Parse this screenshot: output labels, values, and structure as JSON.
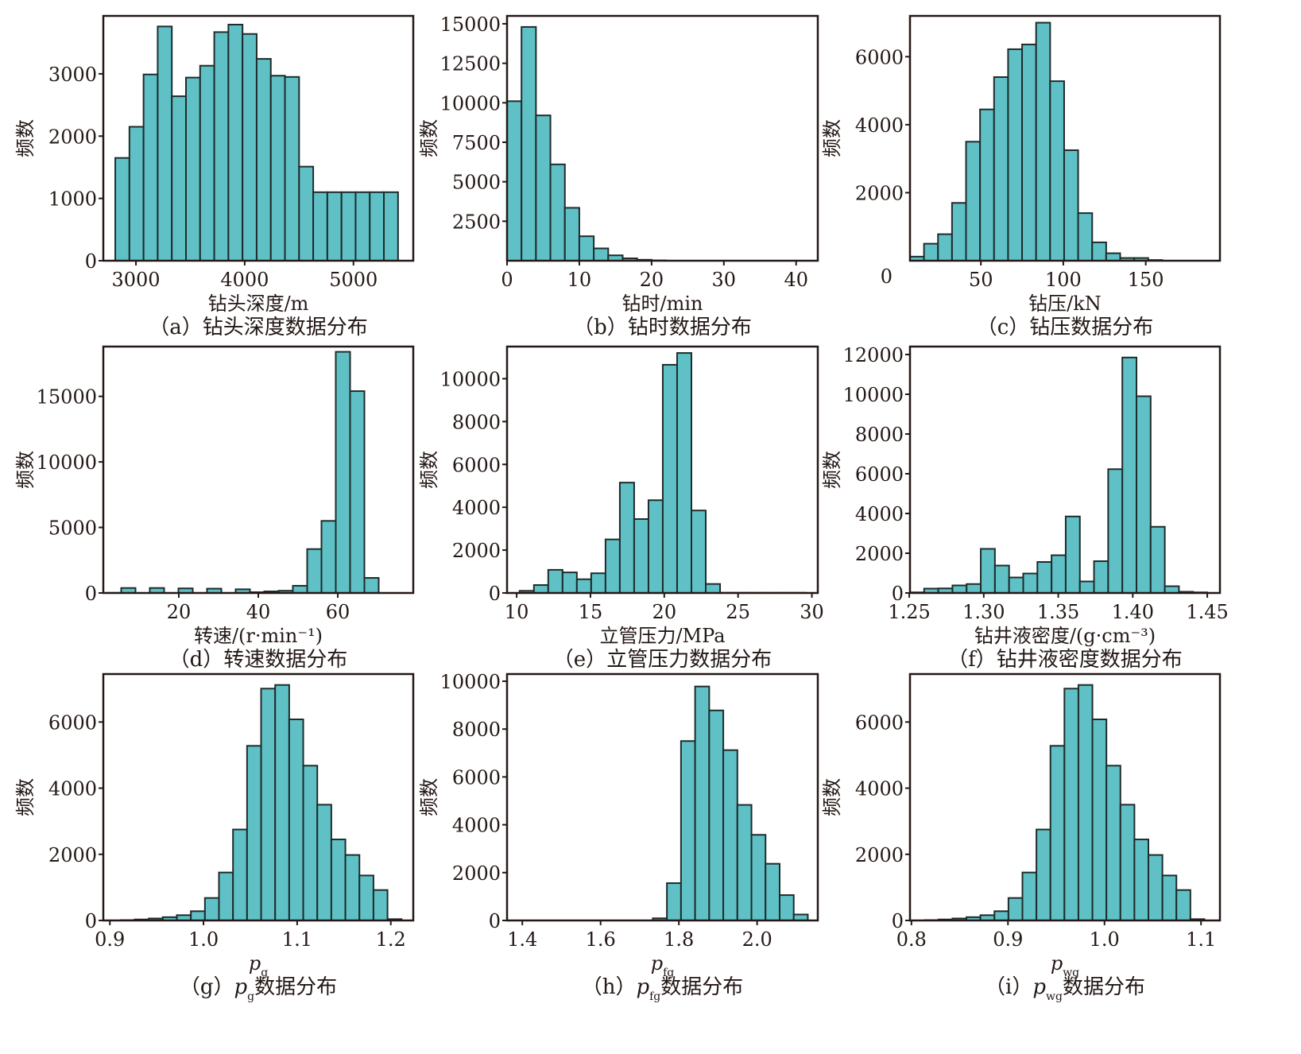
{
  "figure": {
    "bar_color": "#5fc1c6",
    "bar_edge_color": "#1f2b2b",
    "axis_color": "#231815"
  },
  "chart_data": [
    {
      "id": "a",
      "type": "bar",
      "title": "钻头深度数据分布",
      "caption_prefix": "（a）",
      "caption_text": "钻头深度数据分布",
      "xlabel": "钻头深度/m",
      "ylabel": "频数",
      "xlim": [
        2700,
        5550
      ],
      "ylim": [
        0,
        3930
      ],
      "xticks": [
        3000,
        4000,
        5000
      ],
      "xtick_labels": [
        "3000",
        "4000",
        "5000"
      ],
      "yticks": [
        0,
        1000,
        2000,
        3000
      ],
      "ytick_labels": [
        "0",
        "1000",
        "2000",
        "3000"
      ],
      "bin_edges": [
        2810,
        2940,
        3070,
        3200,
        3330,
        3460,
        3590,
        3720,
        3850,
        3980,
        4110,
        4240,
        4370,
        4500,
        4630,
        4760,
        4890,
        5020,
        5150,
        5280,
        5410
      ],
      "values": [
        1650,
        2150,
        2990,
        3760,
        2640,
        2940,
        3130,
        3670,
        3790,
        3640,
        3240,
        2970,
        2950,
        1510,
        1100,
        1100,
        1100,
        1100,
        1100,
        1100
      ]
    },
    {
      "id": "b",
      "type": "bar",
      "title": "钻时数据分布",
      "caption_prefix": "（b）",
      "caption_text": "钻时数据分布",
      "xlabel": "钻时/min",
      "ylabel": "频数",
      "xlim": [
        0,
        43
      ],
      "ylim": [
        0,
        15500
      ],
      "xticks": [
        0,
        10,
        20,
        30,
        40
      ],
      "xtick_labels": [
        "0",
        "10",
        "20",
        "30",
        "40"
      ],
      "yticks": [
        2500,
        5000,
        7500,
        10000,
        12500,
        15000
      ],
      "ytick_labels": [
        "2500",
        "5000",
        "7500",
        "10000",
        "12500",
        "15000"
      ],
      "bin_edges": [
        0,
        2,
        4,
        6,
        8,
        10,
        12,
        14,
        16,
        18,
        20,
        22
      ],
      "values": [
        10100,
        14800,
        9200,
        6100,
        3350,
        1550,
        780,
        340,
        150,
        60,
        20
      ]
    },
    {
      "id": "c",
      "type": "bar",
      "title": "钻压数据分布",
      "caption_prefix": "（c）",
      "caption_text": "钻压数据分布",
      "xlabel": "钻压/kN",
      "ylabel": "频数",
      "xlim": [
        7,
        195
      ],
      "ylim": [
        0,
        7200
      ],
      "xticks": [
        50,
        100,
        150
      ],
      "xtick_labels": [
        "50",
        "100",
        "150"
      ],
      "yticks": [
        2000,
        4000,
        6000
      ],
      "ytick_labels": [
        "2000",
        "4000",
        "6000"
      ],
      "y_zero_label": "0",
      "bin_edges": [
        7,
        15.5,
        24,
        32.5,
        41,
        49.5,
        58,
        66.5,
        75,
        83.5,
        92,
        100.5,
        109,
        117.5,
        126,
        134.5,
        143,
        151.5,
        160
      ],
      "values": [
        120,
        500,
        780,
        1700,
        3500,
        4450,
        5400,
        6220,
        6360,
        7000,
        5280,
        3250,
        1400,
        540,
        220,
        80,
        80,
        20
      ]
    },
    {
      "id": "d",
      "type": "bar",
      "title": "转速数据分布",
      "caption_prefix": "（d）",
      "caption_text": "转速数据分布",
      "xlabel": "转速/(r·min⁻¹)",
      "ylabel": "频数",
      "xlim": [
        1,
        79
      ],
      "ylim": [
        0,
        18800
      ],
      "xticks": [
        20,
        40,
        60
      ],
      "xtick_labels": [
        "20",
        "40",
        "60"
      ],
      "yticks": [
        0,
        5000,
        10000,
        15000
      ],
      "ytick_labels": [
        "0",
        "5000",
        "10000",
        "15000"
      ],
      "bin_edges": [
        1.9,
        5.5,
        9.1,
        12.7,
        16.3,
        19.9,
        23.5,
        27.1,
        30.7,
        34.3,
        37.9,
        41.5,
        45.1,
        48.7,
        52.3,
        55.9,
        59.5,
        63.1,
        66.7,
        70.3,
        73.9
      ],
      "values": [
        10,
        380,
        0,
        380,
        0,
        350,
        0,
        330,
        0,
        280,
        60,
        120,
        170,
        550,
        3350,
        5500,
        18400,
        15400,
        1150,
        0
      ]
    },
    {
      "id": "e",
      "type": "bar",
      "title": "立管压力数据分布",
      "caption_prefix": "（e）",
      "caption_text": "立管压力数据分布",
      "xlabel": "立管压力/MPa",
      "ylabel": "频数",
      "xlim": [
        9.35,
        30.4
      ],
      "ylim": [
        0,
        11500
      ],
      "xticks": [
        10,
        15,
        20,
        25,
        30
      ],
      "xtick_labels": [
        "10",
        "15",
        "20",
        "25",
        "30"
      ],
      "yticks": [
        0,
        2000,
        4000,
        6000,
        8000,
        10000
      ],
      "ytick_labels": [
        "0",
        "2000",
        "4000",
        "6000",
        "8000",
        "10000"
      ],
      "bin_edges": [
        10.2,
        11.17,
        12.14,
        13.11,
        14.08,
        15.05,
        16.02,
        16.99,
        17.96,
        18.93,
        19.9,
        20.87,
        21.84,
        22.81,
        23.78,
        24.75,
        25.72,
        26.69,
        27.66,
        28.63,
        29.6
      ],
      "values": [
        100,
        370,
        1080,
        960,
        640,
        920,
        2500,
        5150,
        3450,
        4330,
        10650,
        11200,
        3850,
        420,
        10,
        10,
        10,
        10,
        10,
        10
      ]
    },
    {
      "id": "f",
      "type": "bar",
      "title": "钻井液密度数据分布",
      "caption_prefix": "（f）",
      "caption_text": "钻井液密度数据分布",
      "xlabel": "钻井液密度/(g·cm⁻³)",
      "ylabel": "频数",
      "xlim": [
        1.2505,
        1.4585
      ],
      "ylim": [
        0,
        12400
      ],
      "xticks": [
        1.25,
        1.3,
        1.35,
        1.4,
        1.45
      ],
      "xtick_labels": [
        "1.25",
        "1.30",
        "1.35",
        "1.40",
        "1.45"
      ],
      "yticks": [
        0,
        2000,
        4000,
        6000,
        8000,
        10000,
        12000
      ],
      "ytick_labels": [
        "0",
        "2000",
        "4000",
        "6000",
        "8000",
        "10000",
        "12000"
      ],
      "bin_edges": [
        1.2505,
        1.26,
        1.2695,
        1.279,
        1.2885,
        1.298,
        1.3075,
        1.317,
        1.3265,
        1.336,
        1.3455,
        1.355,
        1.3645,
        1.374,
        1.3835,
        1.393,
        1.4025,
        1.412,
        1.4215,
        1.431,
        1.4405,
        1.45
      ],
      "values": [
        30,
        220,
        230,
        380,
        450,
        2220,
        1380,
        780,
        980,
        1560,
        1900,
        3850,
        580,
        1600,
        6230,
        11850,
        9900,
        3330,
        340,
        60,
        30
      ]
    },
    {
      "id": "g",
      "type": "bar",
      "title": "p_g数据分布",
      "caption_prefix": "（g）",
      "caption_var": "p",
      "caption_sub": "g",
      "caption_text": "数据分布",
      "xlabel": "p",
      "xlabel_sub": "g",
      "ylabel": "频数",
      "xlim": [
        0.893,
        1.224
      ],
      "ylim": [
        0,
        7450
      ],
      "xticks": [
        0.9,
        1.0,
        1.1,
        1.2
      ],
      "xtick_labels": [
        "0.9",
        "1.0",
        "1.1",
        "1.2"
      ],
      "yticks": [
        0,
        2000,
        4000,
        6000
      ],
      "ytick_labels": [
        "0",
        "2000",
        "4000",
        "6000"
      ],
      "bin_edges": [
        0.9115,
        0.9265,
        0.9415,
        0.9565,
        0.9715,
        0.9865,
        1.0015,
        1.0165,
        1.0315,
        1.0465,
        1.0615,
        1.0765,
        1.0915,
        1.1065,
        1.1215,
        1.1365,
        1.1515,
        1.1665,
        1.1815,
        1.1965,
        1.2115
      ],
      "values": [
        10,
        30,
        60,
        100,
        160,
        280,
        680,
        1450,
        2750,
        5280,
        7010,
        7120,
        6080,
        4680,
        3500,
        2450,
        1980,
        1360,
        920,
        40
      ]
    },
    {
      "id": "h",
      "type": "bar",
      "title": "p_fg数据分布",
      "caption_prefix": "（h）",
      "caption_var": "p",
      "caption_sub": "fg",
      "caption_text": "数据分布",
      "xlabel": "p",
      "xlabel_sub": "fg",
      "ylabel": "频数",
      "xlim": [
        1.361,
        2.155
      ],
      "ylim": [
        0,
        10300
      ],
      "xticks": [
        1.4,
        1.6,
        1.8,
        2.0
      ],
      "xtick_labels": [
        "1.4",
        "1.6",
        "1.8",
        "2.0"
      ],
      "yticks": [
        0,
        2000,
        4000,
        6000,
        8000,
        10000
      ],
      "ytick_labels": [
        "0",
        "2000",
        "4000",
        "6000",
        "8000",
        "10000"
      ],
      "bin_edges": [
        1.7335,
        1.7695,
        1.8055,
        1.8415,
        1.8775,
        1.9135,
        1.9495,
        1.9855,
        2.0215,
        2.0575,
        2.0935,
        2.1295
      ],
      "values": [
        90,
        1560,
        7500,
        9780,
        8780,
        7120,
        4830,
        3580,
        2370,
        1060,
        250
      ]
    },
    {
      "id": "i",
      "type": "bar",
      "title": "p_wg数据分布",
      "caption_prefix": "（i）",
      "caption_var": "p",
      "caption_sub": "wg",
      "caption_text": "数据分布",
      "xlabel": "p",
      "xlabel_sub": "wg",
      "ylabel": "频数",
      "xlim": [
        0.7985,
        1.1196
      ],
      "ylim": [
        0,
        7450
      ],
      "xticks": [
        0.8,
        0.9,
        1.0,
        1.1
      ],
      "xtick_labels": [
        "0.8",
        "0.9",
        "1.0",
        "1.1"
      ],
      "yticks": [
        0,
        2000,
        4000,
        6000
      ],
      "ytick_labels": [
        "0",
        "2000",
        "4000",
        "6000"
      ],
      "bin_edges": [
        0.8135,
        0.828,
        0.8425,
        0.857,
        0.8715,
        0.886,
        0.9005,
        0.915,
        0.9295,
        0.944,
        0.9585,
        0.973,
        0.9875,
        1.002,
        1.0165,
        1.031,
        1.0455,
        1.06,
        1.0745,
        1.089,
        1.1035
      ],
      "values": [
        10,
        30,
        60,
        100,
        160,
        280,
        680,
        1450,
        2750,
        5280,
        7010,
        7120,
        6080,
        4680,
        3500,
        2450,
        1980,
        1360,
        920,
        40
      ]
    }
  ]
}
